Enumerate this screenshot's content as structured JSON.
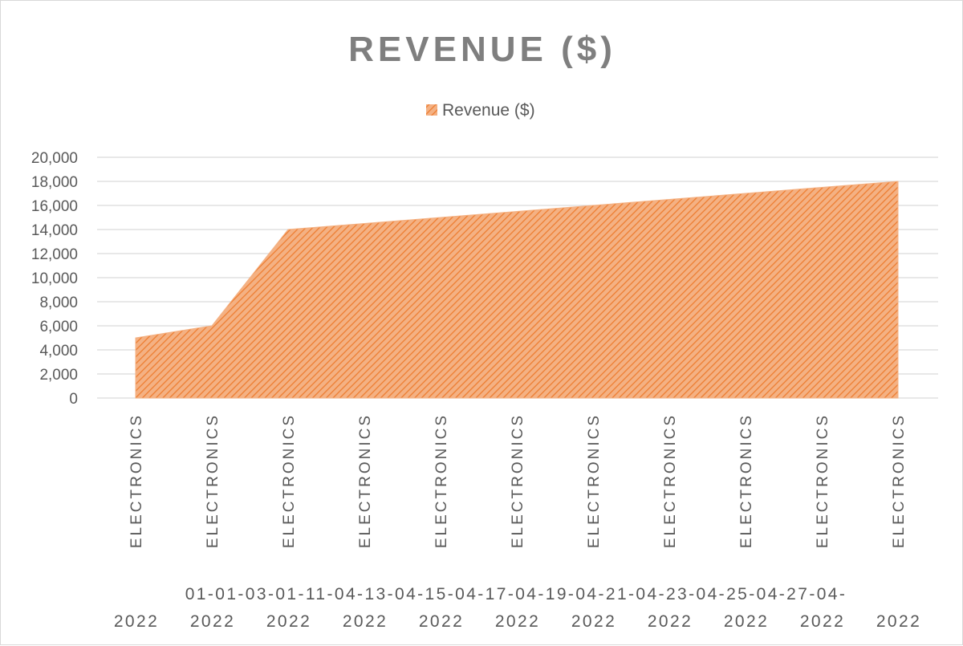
{
  "chart_data": {
    "type": "area",
    "title": "REVENUE ($)",
    "legend": {
      "position": "top",
      "entries": [
        "Revenue ($)"
      ]
    },
    "series": [
      {
        "name": "Revenue ($)",
        "color": "#f4b183",
        "pattern_color": "#ed7d31",
        "values": [
          5000,
          6000,
          14000,
          14500,
          15000,
          15500,
          16000,
          16500,
          17000,
          17500,
          18000
        ]
      }
    ],
    "categories": [
      {
        "category": "ELECTRONICS",
        "date": "01-01-2022"
      },
      {
        "category": "ELECTRONICS",
        "date": "03-01-2022"
      },
      {
        "category": "ELECTRONICS",
        "date": "11-04-2022"
      },
      {
        "category": "ELECTRONICS",
        "date": "13-04-2022"
      },
      {
        "category": "ELECTRONICS",
        "date": "15-04-2022"
      },
      {
        "category": "ELECTRONICS",
        "date": "17-04-2022"
      },
      {
        "category": "ELECTRONICS",
        "date": "19-04-2022"
      },
      {
        "category": "ELECTRONICS",
        "date": "21-04-2022"
      },
      {
        "category": "ELECTRONICS",
        "date": "23-04-2022"
      },
      {
        "category": "ELECTRONICS",
        "date": "25-04-2022"
      },
      {
        "category": "ELECTRONICS",
        "date": "27-04-2022"
      }
    ],
    "date_lines": {
      "top": "01-01-03-01-11-04-13-04-15-04-17-04-19-04-21-04-23-04-25-04-27-04-",
      "bottom": [
        "2022",
        "2022",
        "2022",
        "2022",
        "2022",
        "2022",
        "2022",
        "2022",
        "2022",
        "2022",
        "2022"
      ]
    },
    "y_ticks": [
      "0",
      "2,000",
      "4,000",
      "6,000",
      "8,000",
      "10,000",
      "12,000",
      "14,000",
      "16,000",
      "18,000",
      "20,000"
    ],
    "ylim": [
      0,
      20000
    ],
    "grid": true,
    "xlabel": "",
    "ylabel": ""
  }
}
